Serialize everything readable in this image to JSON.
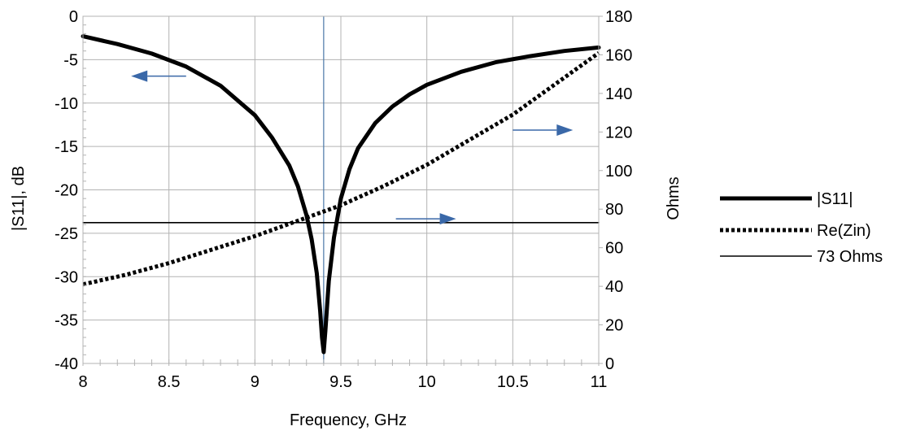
{
  "chart_data": {
    "type": "line",
    "title": "",
    "xlabel": "Frequency, GHz",
    "ylabel_left": "|S11|, dB",
    "ylabel_right": "Ohms",
    "xlim": [
      8,
      11
    ],
    "ylim_left": [
      -40,
      0
    ],
    "ylim_right": [
      0,
      180
    ],
    "x_ticks": [
      "8",
      "8.5",
      "9",
      "9.5",
      "10",
      "10.5",
      "11"
    ],
    "y_left_ticks": [
      "0",
      "-5",
      "-10",
      "-15",
      "-20",
      "-25",
      "-30",
      "-35",
      "-40"
    ],
    "y_right_ticks": [
      "180",
      "160",
      "140",
      "120",
      "100",
      "80",
      "60",
      "40",
      "20",
      "0"
    ],
    "grid": true,
    "legend_position": "right",
    "marker_line": {
      "x": 9.4,
      "color": "#4a77a8"
    },
    "series": [
      {
        "name": "|S11|",
        "axis": "left",
        "style": "solid-thick",
        "color": "#000000",
        "x": [
          8.0,
          8.2,
          8.4,
          8.6,
          8.8,
          9.0,
          9.1,
          9.2,
          9.25,
          9.3,
          9.33,
          9.36,
          9.38,
          9.39,
          9.4,
          9.41,
          9.43,
          9.46,
          9.5,
          9.55,
          9.6,
          9.7,
          9.8,
          9.9,
          10.0,
          10.2,
          10.4,
          10.6,
          10.8,
          11.0
        ],
        "values": [
          -2.3,
          -3.2,
          -4.3,
          -5.8,
          -8.0,
          -11.4,
          -14.0,
          -17.2,
          -19.6,
          -22.9,
          -25.7,
          -29.6,
          -34.0,
          -37.0,
          -38.7,
          -36.2,
          -30.5,
          -25.5,
          -21.0,
          -17.6,
          -15.2,
          -12.3,
          -10.4,
          -9.0,
          -7.9,
          -6.4,
          -5.3,
          -4.6,
          -4.0,
          -3.6
        ]
      },
      {
        "name": "Re(Zin)",
        "axis": "right",
        "style": "dotted-thick",
        "color": "#000000",
        "x": [
          8.0,
          8.25,
          8.5,
          8.75,
          9.0,
          9.25,
          9.5,
          9.75,
          10.0,
          10.25,
          10.5,
          10.75,
          11.0
        ],
        "values": [
          41,
          46,
          52,
          59,
          66,
          74,
          82,
          92,
          103,
          116,
          129,
          145,
          161
        ]
      },
      {
        "name": "73 Ohms",
        "axis": "right",
        "style": "solid-thin",
        "color": "#000000",
        "x": [
          8.0,
          11.0
        ],
        "values": [
          73,
          73
        ]
      }
    ],
    "annotations": [
      {
        "type": "arrow",
        "direction": "left",
        "axis": "left",
        "x": [
          8.6,
          8.28
        ],
        "y": -6.9,
        "color": "#3a68a8"
      },
      {
        "type": "arrow",
        "direction": "right",
        "axis": "right",
        "x": [
          10.5,
          10.85
        ],
        "y": 121,
        "color": "#3a68a8"
      },
      {
        "type": "arrow",
        "direction": "right",
        "axis": "right",
        "x": [
          9.82,
          10.17
        ],
        "y": 75,
        "color": "#3a68a8"
      }
    ]
  }
}
